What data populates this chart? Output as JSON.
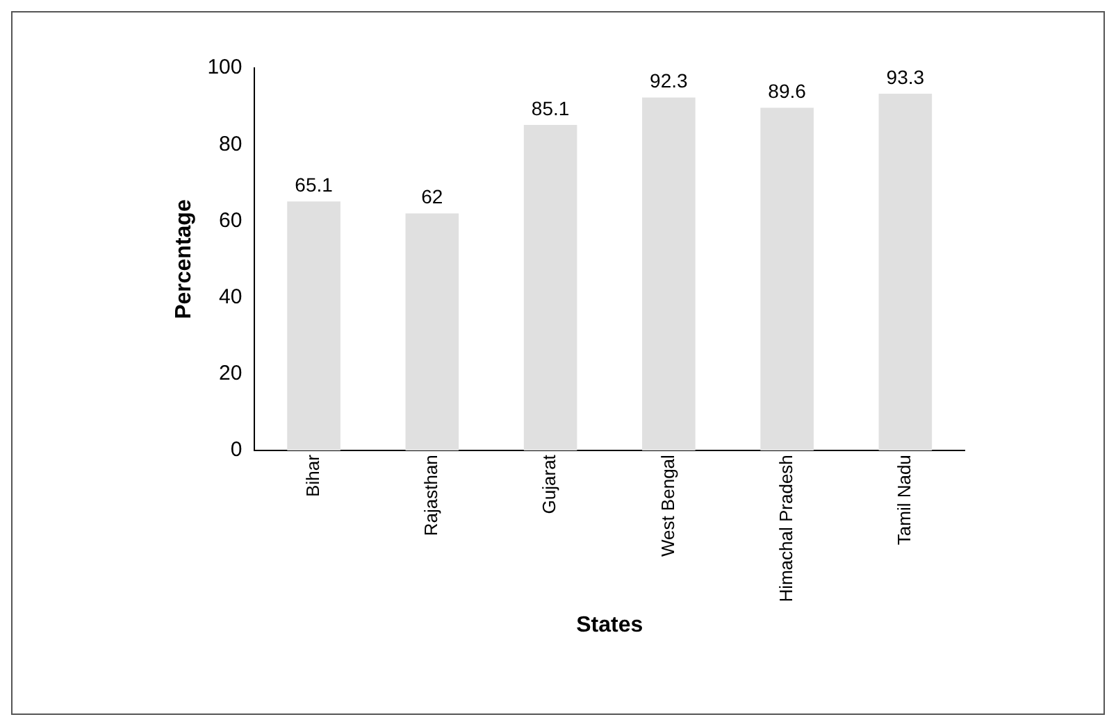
{
  "chart_data": {
    "type": "bar",
    "xlabel": "States",
    "ylabel": "Percentage",
    "categories": [
      "Bihar",
      "Rajasthan",
      "Gujarat",
      "West Bengal",
      "Himachal Pradesh",
      "Tamil Nadu"
    ],
    "values": [
      65.1,
      62,
      85.1,
      92.3,
      89.6,
      93.3
    ],
    "color": "#e0e0e0",
    "ylim": [
      0,
      100
    ],
    "yticks": [
      0,
      20,
      40,
      60,
      80,
      100
    ],
    "grid": false,
    "legend": false,
    "data_labels": true
  }
}
